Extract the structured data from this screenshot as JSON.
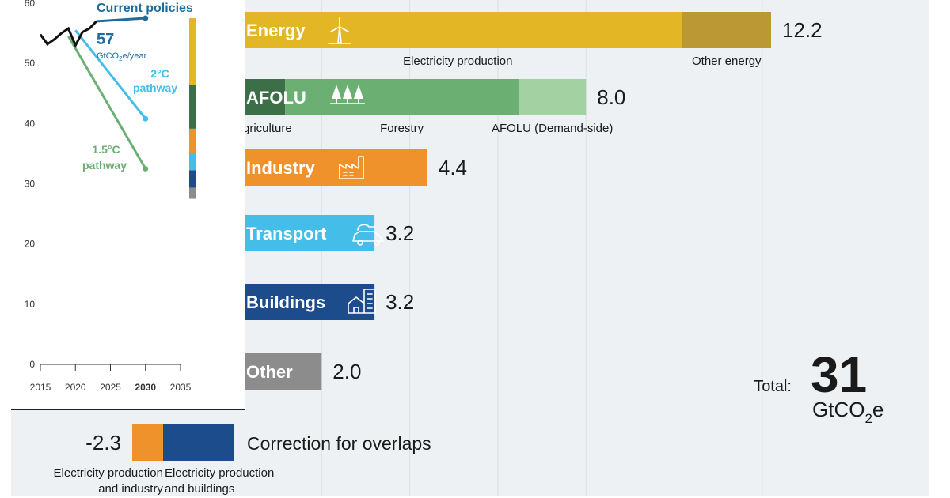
{
  "chart_data": [
    {
      "type": "bar",
      "orientation": "horizontal",
      "xlim": [
        0,
        12.2
      ],
      "bars": [
        {
          "label": "Energy",
          "value": 12.2,
          "icon": "wind-turbine-icon",
          "segments": [
            {
              "name": "Electricity production",
              "value": 10.18,
              "color": "#e2b624"
            },
            {
              "name": "Other energy",
              "value": 2.02,
              "color": "#bb9833"
            }
          ]
        },
        {
          "label": "AFOLU",
          "value": 8.0,
          "icon": "trees-icon",
          "segments": [
            {
              "name": "Agriculture",
              "value": 1.17,
              "color": "#3c6e47"
            },
            {
              "name": "Forestry",
              "value": 5.3,
              "color": "#6bb072"
            },
            {
              "name": "AFOLU (Demand-side)",
              "value": 1.53,
              "color": "#a4d1a1"
            }
          ]
        },
        {
          "label": "Industry",
          "value": 4.4,
          "icon": "factory-icon",
          "segments": [
            {
              "name": "",
              "value": 4.4,
              "color": "#f0922b"
            }
          ]
        },
        {
          "label": "Transport",
          "value": 3.2,
          "icon": "electric-car-icon",
          "segments": [
            {
              "name": "",
              "value": 3.2,
              "color": "#44bde8"
            }
          ]
        },
        {
          "label": "Buildings",
          "value": 3.2,
          "icon": "building-icon",
          "segments": [
            {
              "name": "",
              "value": 3.2,
              "color": "#1d4c8c"
            }
          ]
        },
        {
          "label": "Other",
          "value": 2.0,
          "icon": "",
          "segments": [
            {
              "name": "",
              "value": 2.0,
              "color": "#8c8c8c"
            }
          ]
        }
      ],
      "correction": {
        "label": "Correction for overlaps",
        "value": -2.3,
        "value_label": "-2.3",
        "segments": [
          {
            "name": "Electricity production\nand industry",
            "value": 0.7,
            "color": "#f0922b"
          },
          {
            "name": "Electricity production\nand buildings",
            "value": 1.6,
            "color": "#1d4c8c"
          }
        ]
      },
      "total": {
        "label": "Total:",
        "value": 31,
        "unit": "GtCO2e"
      }
    },
    {
      "type": "line",
      "ylim": [
        0,
        60
      ],
      "yticks": [
        0,
        10,
        20,
        30,
        40,
        50,
        60
      ],
      "xlim": [
        2015,
        2035
      ],
      "xticks": [
        2015,
        2020,
        2025,
        2030,
        2035
      ],
      "bold_xtick": 2030,
      "historical": {
        "x": [
          2015,
          2016,
          2017,
          2018,
          2019,
          2020,
          2021,
          2022,
          2023
        ],
        "y": [
          54.8,
          53.2,
          54.0,
          55.0,
          55.8,
          53.0,
          55.2,
          55.8,
          57.0
        ],
        "color": "#111111"
      },
      "series": [
        {
          "name": "Current policies",
          "x": [
            2023,
            2030
          ],
          "y": [
            57.0,
            57.5
          ],
          "color": "#1d6d9c"
        },
        {
          "name": "2°C pathway",
          "x": [
            2020,
            2030
          ],
          "y": [
            55.5,
            40.8
          ],
          "color": "#44bde8"
        },
        {
          "name": "1.5°C pathway",
          "x": [
            2019,
            2030
          ],
          "y": [
            54.5,
            32.5
          ],
          "color": "#6bb072"
        }
      ],
      "annotation": {
        "value": "57",
        "unit": "GtCO2e/year"
      },
      "gap_bar": [
        {
          "value": 12.2,
          "color": "#e2b624"
        },
        {
          "value": 8.0,
          "color": "#3c6e47"
        },
        {
          "value": 4.4,
          "color": "#f0922b"
        },
        {
          "value": 3.2,
          "color": "#44bde8"
        },
        {
          "value": 3.2,
          "color": "#1d4c8c"
        },
        {
          "value": 2.0,
          "color": "#8c8c8c"
        }
      ]
    }
  ]
}
